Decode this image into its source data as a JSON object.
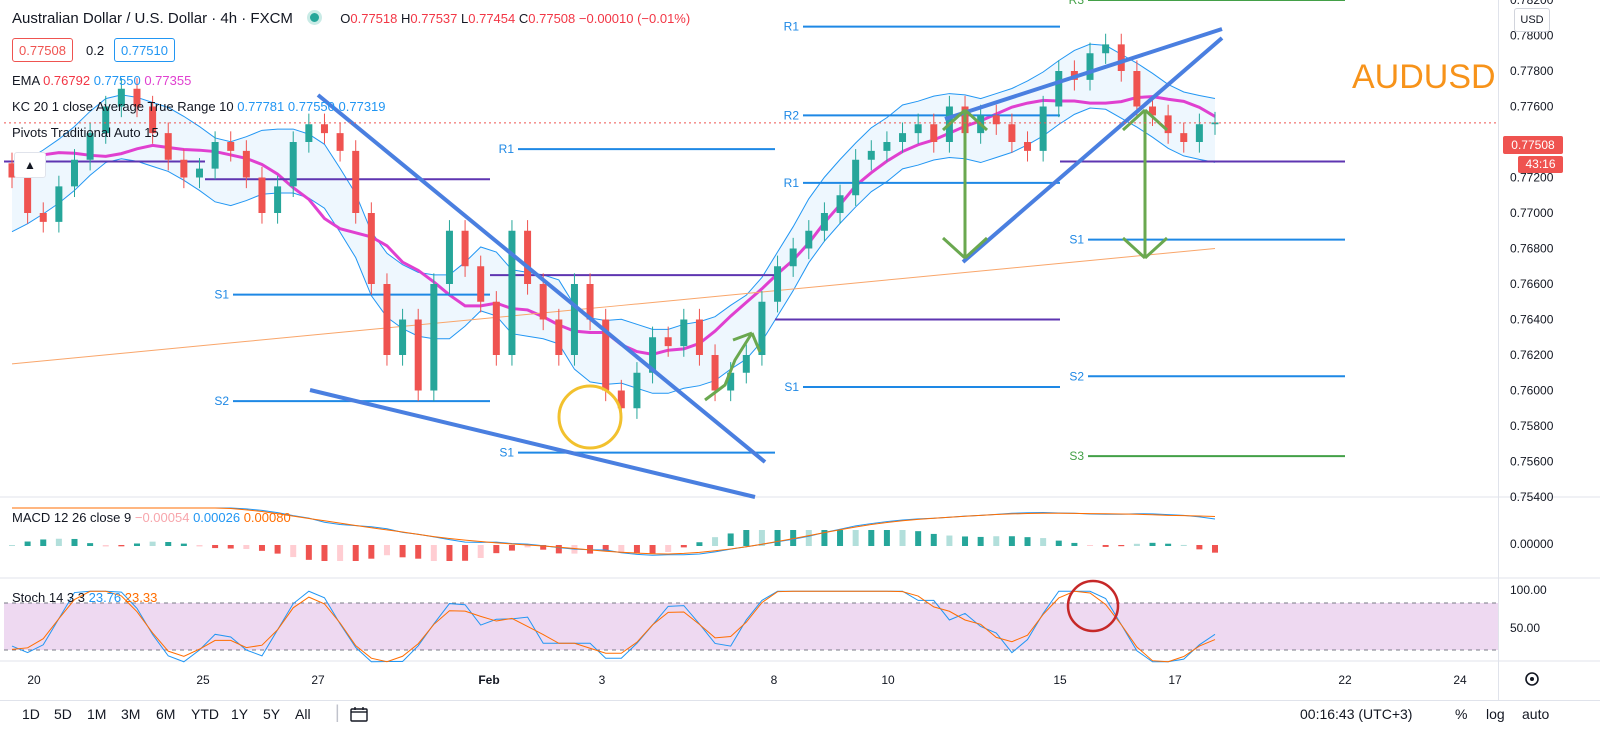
{
  "header": {
    "symbol": "Australian Dollar / U.S. Dollar · 4h · FXCM",
    "o_label": "O",
    "o": "0.77518",
    "h_label": "H",
    "h": "0.77537",
    "l_label": "L",
    "l": "0.77454",
    "c_label": "C",
    "c": "0.77508",
    "change": "−0.00010 (−0.01%)",
    "bid": "0.77508",
    "spread": "0.2",
    "ask": "0.77510"
  },
  "indicators": {
    "ema_label": "EMA",
    "ema_values": [
      "0.76792",
      "0.77550",
      "0.77355"
    ],
    "kc_label": "KC 20 1 close Average True Range 10",
    "kc_values": [
      "0.77781",
      "0.77550",
      "0.77319"
    ],
    "pivots_label": "Pivots Traditional Auto 15",
    "macd_label": "MACD 12 26 close 9",
    "macd_values": [
      "−0.00054",
      "0.00026",
      "0.00080"
    ],
    "stoch_label": "Stoch 14 3 3",
    "stoch_values": [
      "23.76",
      "23.33"
    ]
  },
  "annotation_title": "AUDUSD",
  "currency": "USD",
  "last_price": "0.77508",
  "countdown": "43:16",
  "colors": {
    "up": "#26a69a",
    "down": "#ef5350",
    "ema_fast": "#e040d0",
    "ema_slow": "#f9a66b",
    "kc": "#2196f3",
    "trend": "#4a7fe0",
    "arrow": "#6aa84f",
    "pivot_blue": "#1e88e5",
    "pivot_purple": "#5e35b1",
    "pivot_green": "#43a047"
  },
  "bottom_bar": {
    "ranges": [
      "1D",
      "5D",
      "1M",
      "3M",
      "6M",
      "YTD",
      "1Y",
      "5Y",
      "All"
    ],
    "time": "00:16:43 (UTC+3)",
    "pct": "%",
    "log": "log",
    "auto": "auto",
    "compare_icon": "calendar-range-icon",
    "settings_icon": "gear-icon"
  },
  "chart_data": {
    "type": "candlestick",
    "timeframe": "4h",
    "ylim": [
      0.754,
      0.782
    ],
    "y_ticks": [
      "0.78200",
      "0.78000",
      "0.77800",
      "0.77600",
      "0.77400",
      "0.77200",
      "0.77000",
      "0.76800",
      "0.76600",
      "0.76400",
      "0.76200",
      "0.76000",
      "0.75800",
      "0.75600",
      "0.75400"
    ],
    "x_ticks": [
      "20",
      "25",
      "27",
      "Feb",
      "3",
      "8",
      "10",
      "15",
      "17",
      "22",
      "24"
    ],
    "close_series_approx": [
      0.772,
      0.77,
      0.7695,
      0.7715,
      0.773,
      0.7745,
      0.776,
      0.777,
      0.776,
      0.7745,
      0.773,
      0.772,
      0.7725,
      0.774,
      0.7735,
      0.772,
      0.77,
      0.7715,
      0.774,
      0.775,
      0.7745,
      0.7735,
      0.77,
      0.766,
      0.762,
      0.764,
      0.76,
      0.766,
      0.769,
      0.767,
      0.765,
      0.762,
      0.769,
      0.766,
      0.764,
      0.762,
      0.766,
      0.764,
      0.76,
      0.759,
      0.761,
      0.763,
      0.7625,
      0.764,
      0.762,
      0.76,
      0.761,
      0.762,
      0.765,
      0.767,
      0.768,
      0.769,
      0.77,
      0.771,
      0.773,
      0.7735,
      0.774,
      0.7745,
      0.775,
      0.774,
      0.776,
      0.7745,
      0.7755,
      0.775,
      0.774,
      0.7735,
      0.776,
      0.778,
      0.7775,
      0.779,
      0.7795,
      0.778,
      0.776,
      0.7755,
      0.7745,
      0.774,
      0.775,
      0.7751
    ],
    "pivot_levels": [
      {
        "label": "R3",
        "value": 0.782
      },
      {
        "label": "R1",
        "value": 0.7805
      },
      {
        "label": "R2",
        "value": 0.7755
      },
      {
        "label": "R1",
        "value": 0.7736
      },
      {
        "label": "R1",
        "value": 0.7717
      },
      {
        "label": "S1",
        "value": 0.7685
      },
      {
        "label": "S1",
        "value": 0.7654
      },
      {
        "label": "S2",
        "value": 0.7608
      },
      {
        "label": "S1",
        "value": 0.7602
      },
      {
        "label": "S2",
        "value": 0.7594
      },
      {
        "label": "S3",
        "value": 0.7563
      },
      {
        "label": "S1",
        "value": 0.7565
      }
    ],
    "macd": {
      "ylim": [
        -0.001,
        0.0015
      ],
      "ticks": [
        "0.00000"
      ],
      "macd": -0.00054,
      "signal": 0.00026,
      "hist": 0.0008
    },
    "stoch": {
      "ylim": [
        0,
        100
      ],
      "ticks": [
        "100.00",
        "50.00"
      ],
      "k": 23.76,
      "d": 23.33,
      "band": [
        80,
        20
      ]
    }
  }
}
